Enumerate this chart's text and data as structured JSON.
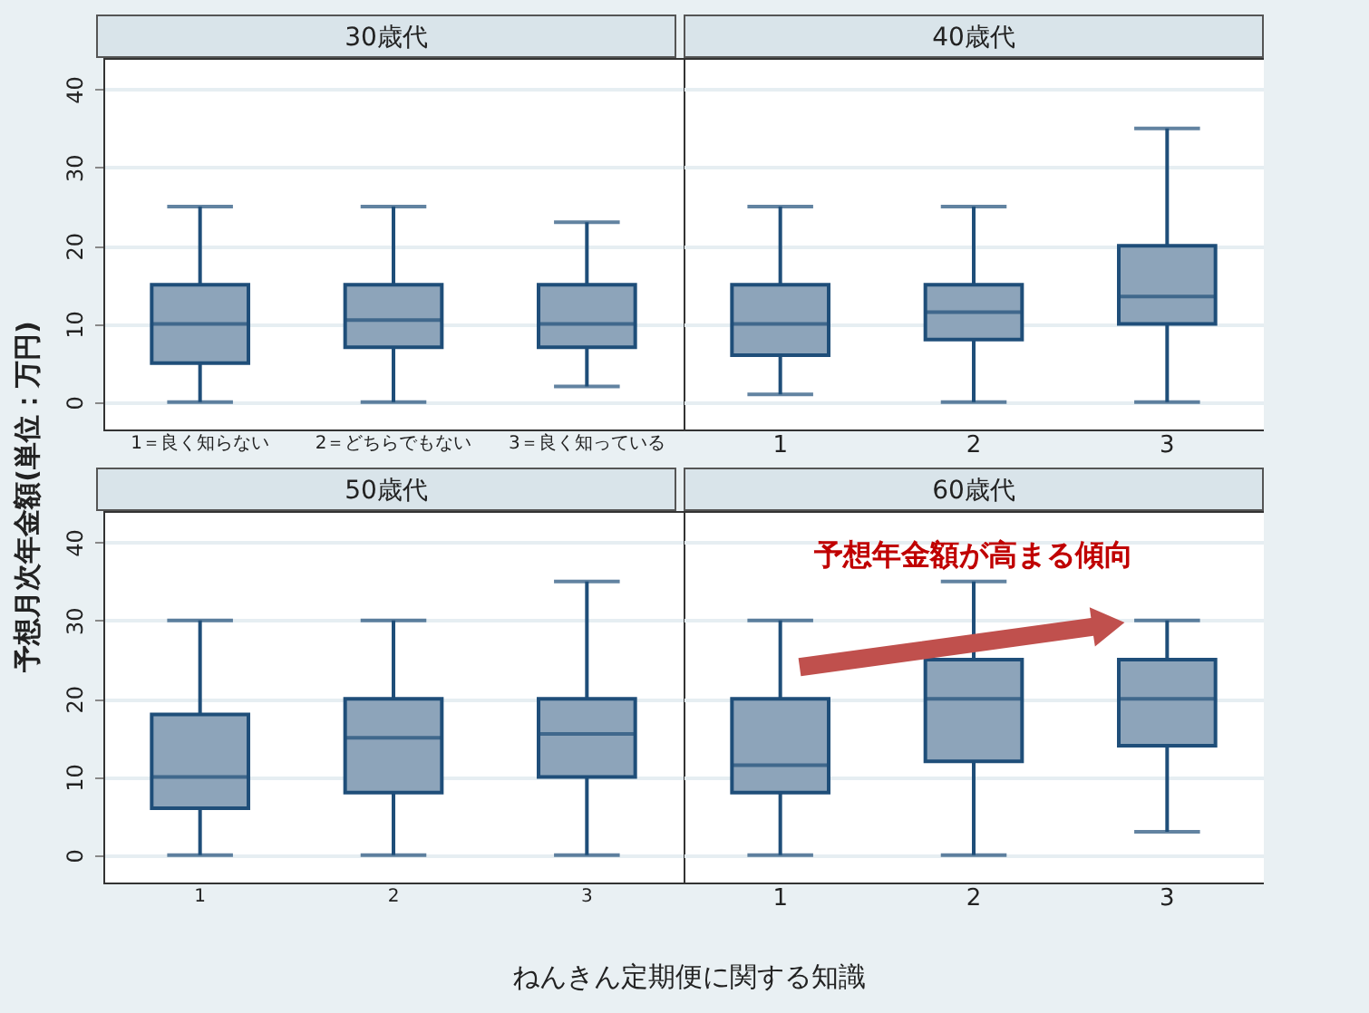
{
  "chart_data": [
    {
      "type": "box",
      "title": "30歳代",
      "ylabel": "予想月次年金額(単位：万円)",
      "categories": [
        "1＝良く知らない",
        "2＝どちらでもない",
        "3＝良く知っている"
      ],
      "ylim": [
        -3.5,
        44
      ],
      "yticks": [
        0,
        10,
        20,
        30,
        40
      ],
      "grid": "y",
      "series": [
        {
          "color": "#8da4ba",
          "boxes": [
            {
              "low": 0,
              "q1": 5,
              "median": 10,
              "q3": 15,
              "high": 25
            },
            {
              "low": 0,
              "q1": 7,
              "median": 10.5,
              "q3": 15,
              "high": 25
            },
            {
              "low": 2,
              "q1": 7,
              "median": 10,
              "q3": 15,
              "high": 23
            }
          ]
        }
      ]
    },
    {
      "type": "box",
      "title": "40歳代",
      "categories": [
        "1",
        "2",
        "3"
      ],
      "ylim": [
        -3.5,
        44
      ],
      "yticks": [
        0,
        10,
        20,
        30,
        40
      ],
      "grid": "y",
      "tick_labels": "x",
      "series": [
        {
          "color": "#8da4ba",
          "boxes": [
            {
              "low": 1,
              "q1": 6,
              "median": 10,
              "q3": 15,
              "high": 25
            },
            {
              "low": 0,
              "q1": 8,
              "median": 11.5,
              "q3": 15,
              "high": 25
            },
            {
              "low": 0,
              "q1": 10,
              "median": 13.5,
              "q3": 20,
              "high": 35
            }
          ]
        }
      ]
    },
    {
      "type": "box",
      "title": "50歳代",
      "xlabel": "ねんきん定期便に関する知識",
      "categories": [
        "1",
        "2",
        "3"
      ],
      "ylim": [
        -3.5,
        44
      ],
      "yticks": [
        0,
        10,
        20,
        30,
        40
      ],
      "grid": "y",
      "series": [
        {
          "color": "#8da4ba",
          "boxes": [
            {
              "low": 0,
              "q1": 6,
              "median": 10,
              "q3": 18,
              "high": 30
            },
            {
              "low": 0,
              "q1": 8,
              "median": 15,
              "q3": 20,
              "high": 30
            },
            {
              "low": 0,
              "q1": 10,
              "median": 15.5,
              "q3": 20,
              "high": 35
            }
          ]
        }
      ]
    },
    {
      "type": "box",
      "title": "60歳代",
      "categories": [
        "1",
        "2",
        "3"
      ],
      "ylim": [
        -3.5,
        44
      ],
      "yticks": [
        0,
        10,
        20,
        30,
        40
      ],
      "grid": "y",
      "tick_labels": "x",
      "annotations": [
        "予想年金額が高まる傾向"
      ],
      "series": [
        {
          "color": "#8da4ba",
          "boxes": [
            {
              "low": 0,
              "q1": 8,
              "median": 11.5,
              "q3": 20,
              "high": 30
            },
            {
              "low": 0,
              "q1": 12,
              "median": 20,
              "q3": 25,
              "high": 35
            },
            {
              "low": 3,
              "q1": 14,
              "median": 20,
              "q3": 25,
              "high": 30
            }
          ]
        }
      ]
    }
  ]
}
